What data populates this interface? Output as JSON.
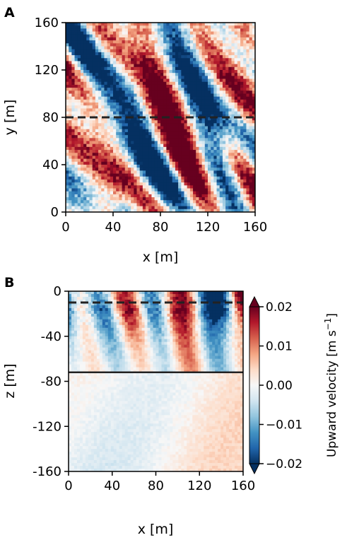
{
  "chart_data": [
    {
      "panel": "A",
      "type": "heatmap",
      "xlabel": "x [m]",
      "ylabel": "y [m]",
      "xlim": [
        0,
        160
      ],
      "ylim": [
        0,
        160
      ],
      "xticks": [
        "0",
        "40",
        "80",
        "120",
        "160"
      ],
      "yticks": [
        "0",
        "40",
        "80",
        "120",
        "160"
      ],
      "xtick_values": [
        0,
        40,
        80,
        120,
        160
      ],
      "ytick_values": [
        0,
        40,
        80,
        120,
        160
      ],
      "dashed_line": {
        "y": 80
      },
      "field": "upward velocity, turbulent, values roughly within ±0.02 m/s"
    },
    {
      "panel": "B",
      "type": "heatmap",
      "xlabel": "x [m]",
      "ylabel": "z [m]",
      "xlim": [
        0,
        160
      ],
      "ylim": [
        -160,
        0
      ],
      "xticks": [
        "0",
        "40",
        "80",
        "120",
        "160"
      ],
      "yticks": [
        "0",
        "-40",
        "-80",
        "-120",
        "-160"
      ],
      "xtick_values": [
        0,
        40,
        80,
        120,
        160
      ],
      "ytick_values": [
        0,
        -40,
        -80,
        -120,
        -160
      ],
      "dashed_line": {
        "z": -10
      },
      "solid_line": {
        "z": -72
      },
      "colorbar": {
        "label": "Upward velocity [m s",
        "label_exponent": "−1",
        "label_close": "]",
        "ticks": [
          "0.02",
          "0.01",
          "0.00",
          "−0.01",
          "−0.02"
        ],
        "tick_values": [
          0.02,
          0.01,
          0.0,
          -0.01,
          -0.02
        ],
        "range": [
          -0.02,
          0.02
        ],
        "colormap": "RdBu_r"
      }
    }
  ],
  "colors": {
    "strong_red": "#67001f",
    "red": "#d6604d",
    "white": "#f7f7f7",
    "blue": "#4393c3",
    "strong_blue": "#053061",
    "line": "#222222"
  }
}
